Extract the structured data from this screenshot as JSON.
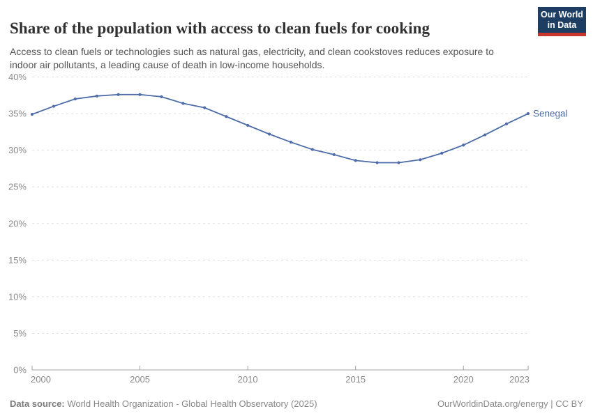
{
  "header": {
    "title": "Share of the population with access to clean fuels for cooking",
    "subtitle": "Access to clean fuels or technologies such as natural gas, electricity, and clean cookstoves reduces exposure to indoor air pollutants, a leading cause of death in low-income households.",
    "logo": {
      "line1": "Our World",
      "line2": "in Data"
    }
  },
  "chart_data": {
    "type": "line",
    "title": "Share of the population with access to clean fuels for cooking",
    "x": [
      2000,
      2001,
      2002,
      2003,
      2004,
      2005,
      2006,
      2007,
      2008,
      2009,
      2010,
      2011,
      2012,
      2013,
      2014,
      2015,
      2016,
      2017,
      2018,
      2019,
      2020,
      2021,
      2022,
      2023
    ],
    "series": [
      {
        "name": "Senegal",
        "color": "#4c6ba8",
        "values": [
          34.9,
          36.0,
          37.0,
          37.4,
          37.6,
          37.6,
          37.3,
          36.4,
          35.8,
          34.6,
          33.4,
          32.2,
          31.1,
          30.1,
          29.4,
          28.6,
          28.3,
          28.3,
          28.7,
          29.6,
          30.7,
          32.1,
          33.6,
          35.0
        ]
      }
    ],
    "xlim": [
      2000,
      2023
    ],
    "ylim": [
      0,
      40
    ],
    "x_ticks": [
      2000,
      2005,
      2010,
      2015,
      2020,
      2023
    ],
    "y_ticks": [
      0,
      5,
      10,
      15,
      20,
      25,
      30,
      35,
      40
    ],
    "y_tick_suffix": "%",
    "xlabel": "",
    "ylabel": "",
    "grid": "horizontal-dashed",
    "legend": "line-end-label"
  },
  "footer": {
    "datasource_label": "Data source:",
    "datasource_text": "World Health Organization - Global Health Observatory (2025)",
    "credit": "OurWorldinData.org/energy | CC BY"
  },
  "colors": {
    "series_blue": "#4c6ba8",
    "logo_bg": "#1d3d63",
    "logo_accent": "#c9342d",
    "grid": "#dddddd",
    "axis": "#a3a3a3",
    "tick_text": "#8a8a8a",
    "title_text": "#303030",
    "subtitle_text": "#555555",
    "footer_text": "#878787"
  }
}
